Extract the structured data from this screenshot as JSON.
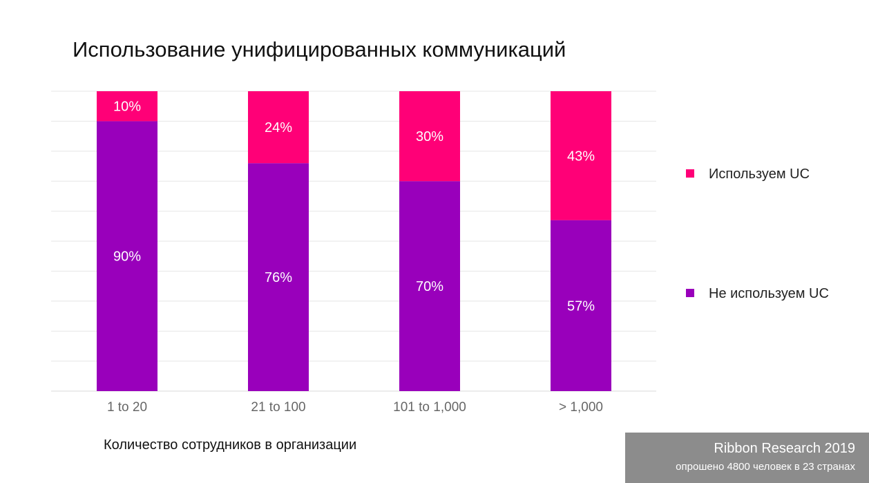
{
  "chart_data": {
    "type": "bar",
    "stacked": true,
    "title": "Использование унифицированных коммуникаций",
    "xlabel": "Количество сотрудников в организации",
    "ylabel": "",
    "ylim": [
      0,
      100
    ],
    "grid": true,
    "legend_position": "right",
    "categories": [
      "1 to 20",
      "21 to 100",
      "101 to 1,000",
      "> 1,000"
    ],
    "series": [
      {
        "name": "Не используем UC",
        "values": [
          90,
          76,
          70,
          57
        ],
        "labels": [
          "90%",
          "76%",
          "70%",
          "57%"
        ],
        "color": "#9900bb"
      },
      {
        "name": "Используем UC",
        "values": [
          10,
          24,
          30,
          43
        ],
        "labels": [
          "10%",
          "24%",
          "30%",
          "43%"
        ],
        "color": "#ff0077"
      }
    ]
  },
  "legend": {
    "items": [
      {
        "label": "Используем UC",
        "color": "#ff0077"
      },
      {
        "label": "Не используем UC",
        "color": "#9900bb"
      }
    ]
  },
  "source": {
    "title": "Ribbon Research 2019",
    "subtitle": "опрошено 4800 человек в 23 странах"
  }
}
